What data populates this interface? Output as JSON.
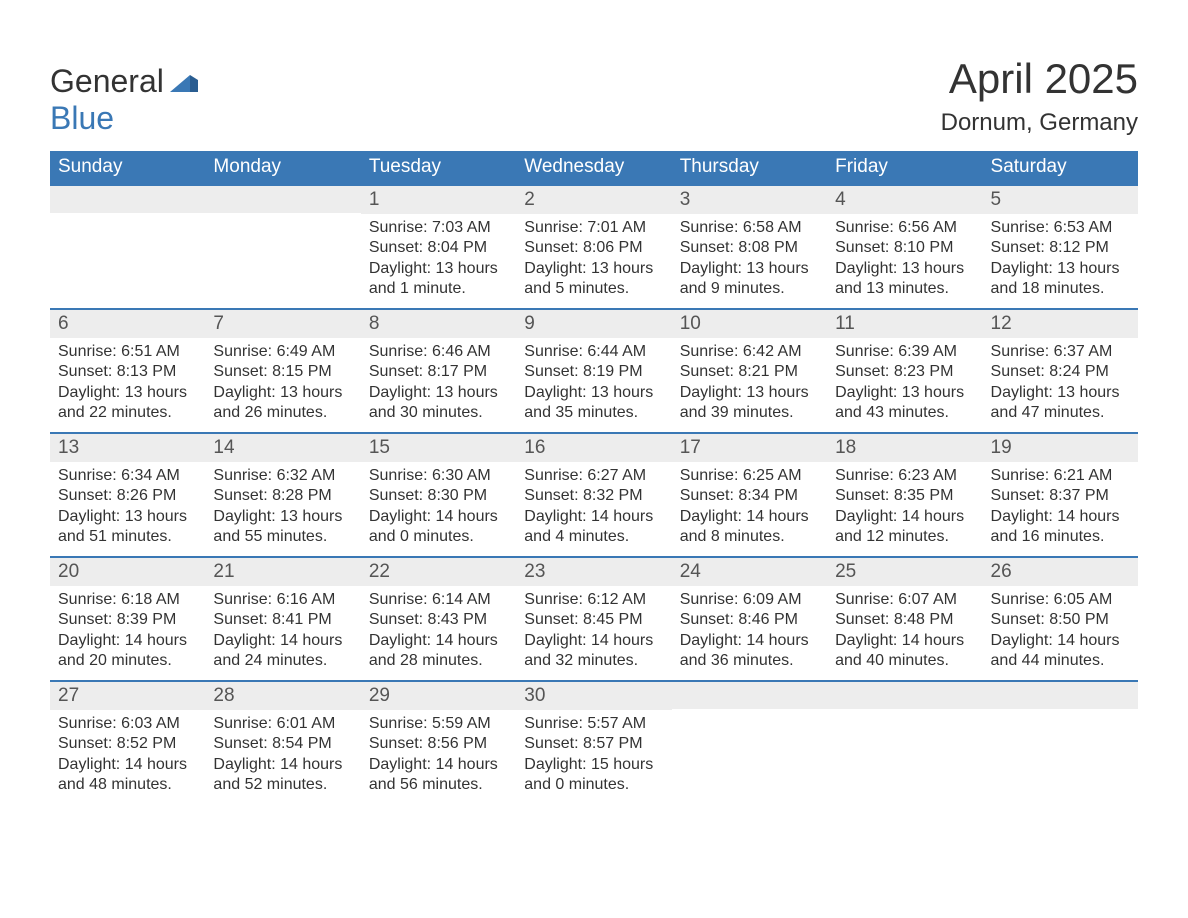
{
  "logo": {
    "text1": "General",
    "text2": "Blue",
    "accent_color": "#3a78b5"
  },
  "title": "April 2025",
  "location": "Dornum, Germany",
  "colors": {
    "header_bg": "#3a78b5",
    "header_text": "#ffffff",
    "day_strip_bg": "#ededed",
    "body_text": "#333333",
    "background": "#ffffff"
  },
  "fonts": {
    "title_size": 42,
    "location_size": 24,
    "header_size": 19,
    "daynum_size": 19,
    "body_size": 16
  },
  "day_headers": [
    "Sunday",
    "Monday",
    "Tuesday",
    "Wednesday",
    "Thursday",
    "Friday",
    "Saturday"
  ],
  "weeks": [
    [
      null,
      null,
      {
        "n": "1",
        "sunrise": "7:03 AM",
        "sunset": "8:04 PM",
        "dl1": "Daylight: 13 hours",
        "dl2": "and 1 minute."
      },
      {
        "n": "2",
        "sunrise": "7:01 AM",
        "sunset": "8:06 PM",
        "dl1": "Daylight: 13 hours",
        "dl2": "and 5 minutes."
      },
      {
        "n": "3",
        "sunrise": "6:58 AM",
        "sunset": "8:08 PM",
        "dl1": "Daylight: 13 hours",
        "dl2": "and 9 minutes."
      },
      {
        "n": "4",
        "sunrise": "6:56 AM",
        "sunset": "8:10 PM",
        "dl1": "Daylight: 13 hours",
        "dl2": "and 13 minutes."
      },
      {
        "n": "5",
        "sunrise": "6:53 AM",
        "sunset": "8:12 PM",
        "dl1": "Daylight: 13 hours",
        "dl2": "and 18 minutes."
      }
    ],
    [
      {
        "n": "6",
        "sunrise": "6:51 AM",
        "sunset": "8:13 PM",
        "dl1": "Daylight: 13 hours",
        "dl2": "and 22 minutes."
      },
      {
        "n": "7",
        "sunrise": "6:49 AM",
        "sunset": "8:15 PM",
        "dl1": "Daylight: 13 hours",
        "dl2": "and 26 minutes."
      },
      {
        "n": "8",
        "sunrise": "6:46 AM",
        "sunset": "8:17 PM",
        "dl1": "Daylight: 13 hours",
        "dl2": "and 30 minutes."
      },
      {
        "n": "9",
        "sunrise": "6:44 AM",
        "sunset": "8:19 PM",
        "dl1": "Daylight: 13 hours",
        "dl2": "and 35 minutes."
      },
      {
        "n": "10",
        "sunrise": "6:42 AM",
        "sunset": "8:21 PM",
        "dl1": "Daylight: 13 hours",
        "dl2": "and 39 minutes."
      },
      {
        "n": "11",
        "sunrise": "6:39 AM",
        "sunset": "8:23 PM",
        "dl1": "Daylight: 13 hours",
        "dl2": "and 43 minutes."
      },
      {
        "n": "12",
        "sunrise": "6:37 AM",
        "sunset": "8:24 PM",
        "dl1": "Daylight: 13 hours",
        "dl2": "and 47 minutes."
      }
    ],
    [
      {
        "n": "13",
        "sunrise": "6:34 AM",
        "sunset": "8:26 PM",
        "dl1": "Daylight: 13 hours",
        "dl2": "and 51 minutes."
      },
      {
        "n": "14",
        "sunrise": "6:32 AM",
        "sunset": "8:28 PM",
        "dl1": "Daylight: 13 hours",
        "dl2": "and 55 minutes."
      },
      {
        "n": "15",
        "sunrise": "6:30 AM",
        "sunset": "8:30 PM",
        "dl1": "Daylight: 14 hours",
        "dl2": "and 0 minutes."
      },
      {
        "n": "16",
        "sunrise": "6:27 AM",
        "sunset": "8:32 PM",
        "dl1": "Daylight: 14 hours",
        "dl2": "and 4 minutes."
      },
      {
        "n": "17",
        "sunrise": "6:25 AM",
        "sunset": "8:34 PM",
        "dl1": "Daylight: 14 hours",
        "dl2": "and 8 minutes."
      },
      {
        "n": "18",
        "sunrise": "6:23 AM",
        "sunset": "8:35 PM",
        "dl1": "Daylight: 14 hours",
        "dl2": "and 12 minutes."
      },
      {
        "n": "19",
        "sunrise": "6:21 AM",
        "sunset": "8:37 PM",
        "dl1": "Daylight: 14 hours",
        "dl2": "and 16 minutes."
      }
    ],
    [
      {
        "n": "20",
        "sunrise": "6:18 AM",
        "sunset": "8:39 PM",
        "dl1": "Daylight: 14 hours",
        "dl2": "and 20 minutes."
      },
      {
        "n": "21",
        "sunrise": "6:16 AM",
        "sunset": "8:41 PM",
        "dl1": "Daylight: 14 hours",
        "dl2": "and 24 minutes."
      },
      {
        "n": "22",
        "sunrise": "6:14 AM",
        "sunset": "8:43 PM",
        "dl1": "Daylight: 14 hours",
        "dl2": "and 28 minutes."
      },
      {
        "n": "23",
        "sunrise": "6:12 AM",
        "sunset": "8:45 PM",
        "dl1": "Daylight: 14 hours",
        "dl2": "and 32 minutes."
      },
      {
        "n": "24",
        "sunrise": "6:09 AM",
        "sunset": "8:46 PM",
        "dl1": "Daylight: 14 hours",
        "dl2": "and 36 minutes."
      },
      {
        "n": "25",
        "sunrise": "6:07 AM",
        "sunset": "8:48 PM",
        "dl1": "Daylight: 14 hours",
        "dl2": "and 40 minutes."
      },
      {
        "n": "26",
        "sunrise": "6:05 AM",
        "sunset": "8:50 PM",
        "dl1": "Daylight: 14 hours",
        "dl2": "and 44 minutes."
      }
    ],
    [
      {
        "n": "27",
        "sunrise": "6:03 AM",
        "sunset": "8:52 PM",
        "dl1": "Daylight: 14 hours",
        "dl2": "and 48 minutes."
      },
      {
        "n": "28",
        "sunrise": "6:01 AM",
        "sunset": "8:54 PM",
        "dl1": "Daylight: 14 hours",
        "dl2": "and 52 minutes."
      },
      {
        "n": "29",
        "sunrise": "5:59 AM",
        "sunset": "8:56 PM",
        "dl1": "Daylight: 14 hours",
        "dl2": "and 56 minutes."
      },
      {
        "n": "30",
        "sunrise": "5:57 AM",
        "sunset": "8:57 PM",
        "dl1": "Daylight: 15 hours",
        "dl2": "and 0 minutes."
      },
      null,
      null,
      null
    ]
  ],
  "labels": {
    "sunrise_prefix": "Sunrise: ",
    "sunset_prefix": "Sunset: "
  }
}
